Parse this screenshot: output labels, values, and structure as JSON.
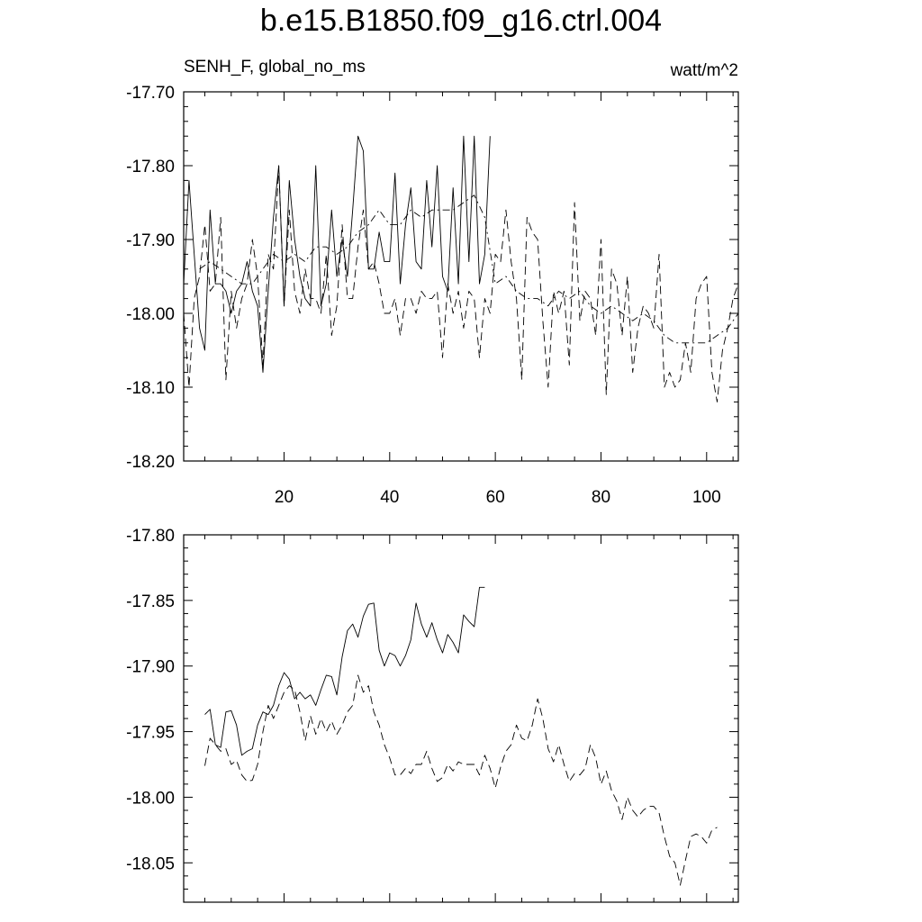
{
  "header": {
    "title": "b.e15.B1850.f09_g16.ctrl.004",
    "left_label": "SENH_F, global_no_ms",
    "right_label": "watt/m^2"
  },
  "chart_data": [
    {
      "type": "line",
      "title": "",
      "xlabel": "",
      "ylabel": "",
      "xlim": [
        1,
        106
      ],
      "ylim": [
        -18.2,
        -17.7
      ],
      "x_ticks": [
        20,
        40,
        60,
        80,
        100
      ],
      "x_tick_labels": [
        "20",
        "40",
        "60",
        "80",
        "100"
      ],
      "y_ticks": [
        -17.7,
        -17.8,
        -17.9,
        -18.0,
        -18.1,
        -18.2
      ],
      "y_tick_labels": [
        "-17.70",
        "-17.80",
        "-17.90",
        "-18.00",
        "-18.10",
        "-18.20"
      ],
      "grid": false,
      "series": [
        {
          "style": "solid",
          "x": [
            1,
            2,
            3,
            4,
            5,
            6,
            7,
            8,
            9,
            10,
            11,
            12,
            13,
            14,
            15,
            16,
            17,
            18,
            19,
            20,
            21,
            22,
            23,
            24,
            25,
            26,
            27,
            28,
            29,
            30,
            31,
            32,
            33,
            34,
            35,
            36,
            37,
            38,
            39,
            40,
            41,
            42,
            43,
            44,
            45,
            46,
            47,
            48,
            49,
            50,
            51,
            52,
            53,
            54,
            55,
            56,
            57,
            58,
            59
          ],
          "y": [
            -17.96,
            -17.82,
            -17.92,
            -18.02,
            -18.05,
            -17.86,
            -17.96,
            -17.96,
            -17.97,
            -18.0,
            -17.97,
            -17.96,
            -17.93,
            -17.97,
            -17.99,
            -18.08,
            -17.97,
            -17.87,
            -17.8,
            -17.99,
            -17.82,
            -17.9,
            -17.95,
            -17.98,
            -17.99,
            -17.8,
            -17.99,
            -17.96,
            -17.86,
            -17.95,
            -17.9,
            -17.95,
            -17.86,
            -17.76,
            -17.78,
            -17.94,
            -17.94,
            -17.89,
            -17.93,
            -17.93,
            -17.81,
            -17.96,
            -17.88,
            -17.83,
            -17.93,
            -17.94,
            -17.82,
            -17.91,
            -17.8,
            -17.95,
            -17.97,
            -17.83,
            -17.96,
            -17.76,
            -17.93,
            -17.76,
            -17.96,
            -17.92,
            -17.76
          ]
        },
        {
          "style": "dashed",
          "x": [
            1,
            2,
            3,
            4,
            5,
            6,
            7,
            8,
            9,
            10,
            11,
            12,
            13,
            14,
            15,
            16,
            17,
            18,
            19,
            20,
            21,
            22,
            23,
            24,
            25,
            26,
            27,
            28,
            29,
            30,
            31,
            32,
            33,
            34,
            35,
            36,
            37,
            38,
            39,
            40,
            41,
            42,
            43,
            44,
            45,
            46,
            47,
            48,
            49,
            50,
            51,
            52,
            53,
            54,
            55,
            56,
            57,
            58,
            59,
            60,
            61,
            62,
            63,
            64,
            65,
            66,
            67,
            68,
            69,
            70,
            71,
            72,
            73,
            74,
            75,
            76,
            77,
            78,
            79,
            80,
            81,
            82,
            83,
            84,
            85,
            86,
            87,
            88,
            89,
            90,
            91,
            92,
            93,
            94,
            95,
            96,
            97,
            98,
            99,
            100,
            101,
            102,
            103,
            104,
            105,
            106
          ],
          "y": [
            -18.0,
            -18.1,
            -17.98,
            -17.95,
            -17.88,
            -17.97,
            -17.96,
            -17.87,
            -18.09,
            -17.97,
            -18.02,
            -17.98,
            -17.96,
            -17.9,
            -17.95,
            -18.07,
            -17.92,
            -17.94,
            -17.8,
            -17.99,
            -17.86,
            -17.97,
            -18.0,
            -17.94,
            -17.98,
            -17.98,
            -18.0,
            -17.92,
            -18.03,
            -17.99,
            -17.88,
            -17.98,
            -17.98,
            -17.91,
            -17.86,
            -17.94,
            -17.93,
            -17.96,
            -18.0,
            -18.0,
            -17.98,
            -18.03,
            -17.98,
            -17.98,
            -18.0,
            -17.97,
            -17.98,
            -17.98,
            -17.97,
            -18.06,
            -17.96,
            -18.0,
            -17.97,
            -18.02,
            -17.97,
            -17.98,
            -18.06,
            -17.98,
            -18.0,
            -17.92,
            -17.93,
            -17.86,
            -17.93,
            -17.98,
            -18.09,
            -17.87,
            -17.89,
            -17.9,
            -18.01,
            -18.1,
            -17.97,
            -18.0,
            -17.97,
            -18.07,
            -17.85,
            -18.01,
            -17.97,
            -17.98,
            -18.03,
            -17.9,
            -18.11,
            -17.94,
            -17.96,
            -18.03,
            -17.95,
            -18.08,
            -18.02,
            -17.99,
            -18.0,
            -18.02,
            -17.92,
            -18.1,
            -18.08,
            -18.1,
            -18.09,
            -18.04,
            -18.08,
            -17.98,
            -17.96,
            -17.95,
            -18.08,
            -18.12,
            -18.05,
            -18.02,
            -17.98,
            -17.96
          ]
        },
        {
          "style": "dash-dot",
          "x": [
            4,
            6,
            8,
            10,
            12,
            14,
            16,
            18,
            20,
            22,
            24,
            26,
            28,
            30,
            32,
            34,
            36,
            38,
            40,
            42,
            44,
            46,
            48,
            50,
            52,
            54,
            56,
            58,
            60,
            62,
            64,
            66,
            68,
            70,
            72,
            74,
            76,
            78,
            80,
            82,
            84,
            86,
            88,
            90,
            92,
            94,
            96,
            98,
            100,
            102,
            104,
            106
          ],
          "y": [
            -17.94,
            -17.93,
            -17.94,
            -17.95,
            -17.96,
            -17.96,
            -17.94,
            -17.92,
            -17.93,
            -17.92,
            -17.93,
            -17.91,
            -17.91,
            -17.92,
            -17.91,
            -17.89,
            -17.88,
            -17.86,
            -17.88,
            -17.88,
            -17.86,
            -17.87,
            -17.86,
            -17.86,
            -17.86,
            -17.85,
            -17.84,
            -17.87,
            -17.96,
            -17.95,
            -17.97,
            -17.98,
            -17.98,
            -17.99,
            -17.97,
            -17.98,
            -17.97,
            -17.99,
            -18.0,
            -17.99,
            -18.0,
            -18.01,
            -18.0,
            -18.01,
            -18.03,
            -18.04,
            -18.04,
            -18.04,
            -18.04,
            -18.03,
            -18.02,
            -18.0
          ]
        }
      ]
    },
    {
      "type": "line",
      "title": "",
      "xlabel": "",
      "ylabel": "",
      "xlim": [
        1,
        106
      ],
      "ylim": [
        -18.08,
        -17.8
      ],
      "x_ticks": [
        20,
        40,
        60,
        80,
        100
      ],
      "x_tick_labels": [],
      "y_ticks": [
        -17.8,
        -17.85,
        -17.9,
        -17.95,
        -18.0,
        -18.05
      ],
      "y_tick_labels": [
        "-17.80",
        "-17.85",
        "-17.90",
        "-17.95",
        "-18.00",
        "-18.05"
      ],
      "grid": false,
      "series": [
        {
          "style": "solid",
          "x": [
            5,
            6,
            7,
            8,
            9,
            10,
            11,
            12,
            13,
            14,
            15,
            16,
            17,
            18,
            19,
            20,
            21,
            22,
            23,
            24,
            25,
            26,
            27,
            28,
            29,
            30,
            31,
            32,
            33,
            34,
            35,
            36,
            37,
            38,
            39,
            40,
            41,
            42,
            43,
            44,
            45,
            46,
            47,
            48,
            49,
            50,
            51,
            52,
            53,
            54,
            55,
            56,
            57,
            58
          ],
          "y": [
            -17.937,
            -17.933,
            -17.96,
            -17.962,
            -17.935,
            -17.934,
            -17.945,
            -17.968,
            -17.965,
            -17.963,
            -17.945,
            -17.935,
            -17.937,
            -17.93,
            -17.915,
            -17.905,
            -17.91,
            -17.925,
            -17.92,
            -17.925,
            -17.922,
            -17.93,
            -17.918,
            -17.907,
            -17.908,
            -17.922,
            -17.893,
            -17.873,
            -17.868,
            -17.878,
            -17.862,
            -17.853,
            -17.852,
            -17.888,
            -17.9,
            -17.89,
            -17.892,
            -17.9,
            -17.892,
            -17.88,
            -17.852,
            -17.868,
            -17.878,
            -17.867,
            -17.88,
            -17.89,
            -17.876,
            -17.882,
            -17.89,
            -17.861,
            -17.866,
            -17.87,
            -17.84,
            -17.84
          ]
        },
        {
          "style": "dashed",
          "x": [
            5,
            6,
            7,
            8,
            9,
            10,
            11,
            12,
            13,
            14,
            15,
            16,
            17,
            18,
            19,
            20,
            21,
            22,
            23,
            24,
            25,
            26,
            27,
            28,
            29,
            30,
            31,
            32,
            33,
            34,
            35,
            36,
            37,
            38,
            39,
            40,
            41,
            42,
            43,
            44,
            45,
            46,
            47,
            48,
            49,
            50,
            51,
            52,
            53,
            54,
            55,
            56,
            57,
            58,
            59,
            60,
            61,
            62,
            63,
            64,
            65,
            66,
            67,
            68,
            69,
            70,
            71,
            72,
            73,
            74,
            75,
            76,
            77,
            78,
            79,
            80,
            81,
            82,
            83,
            84,
            85,
            86,
            87,
            88,
            89,
            90,
            91,
            92,
            93,
            94,
            95,
            96,
            97,
            98,
            99,
            100,
            101,
            102
          ],
          "y": [
            -17.976,
            -17.955,
            -17.96,
            -17.965,
            -17.963,
            -17.975,
            -17.972,
            -17.983,
            -17.988,
            -17.987,
            -17.975,
            -17.95,
            -17.93,
            -17.94,
            -17.93,
            -17.92,
            -17.915,
            -17.918,
            -17.935,
            -17.957,
            -17.938,
            -17.952,
            -17.94,
            -17.95,
            -17.942,
            -17.952,
            -17.945,
            -17.935,
            -17.93,
            -17.907,
            -17.92,
            -17.915,
            -17.935,
            -17.945,
            -17.96,
            -17.97,
            -17.983,
            -17.983,
            -17.978,
            -17.982,
            -17.975,
            -17.975,
            -17.965,
            -17.978,
            -17.988,
            -17.985,
            -17.975,
            -17.98,
            -17.973,
            -17.975,
            -17.975,
            -17.975,
            -17.983,
            -17.968,
            -17.978,
            -17.993,
            -17.977,
            -17.965,
            -17.96,
            -17.945,
            -17.955,
            -17.957,
            -17.945,
            -17.925,
            -17.94,
            -17.963,
            -17.973,
            -17.96,
            -17.975,
            -17.988,
            -17.982,
            -17.983,
            -17.978,
            -17.96,
            -17.97,
            -17.99,
            -17.98,
            -17.995,
            -18.003,
            -18.017,
            -18.0,
            -18.01,
            -18.015,
            -18.01,
            -18.007,
            -18.007,
            -18.012,
            -18.03,
            -18.045,
            -18.05,
            -18.067,
            -18.048,
            -18.03,
            -18.028,
            -18.03,
            -18.035,
            -18.025,
            -18.023
          ]
        }
      ]
    }
  ]
}
